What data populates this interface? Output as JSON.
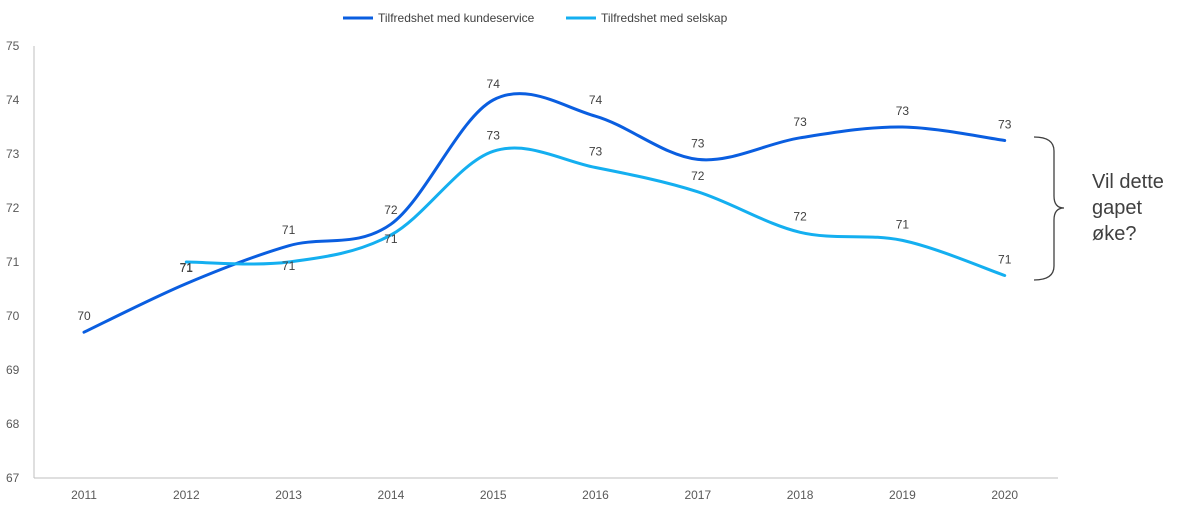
{
  "chart_data": {
    "type": "line",
    "title": "",
    "xlabel": "",
    "ylabel": "",
    "categories": [
      "2011",
      "2012",
      "2013",
      "2014",
      "2015",
      "2016",
      "2017",
      "2018",
      "2019",
      "2020"
    ],
    "ylim": [
      67,
      75
    ],
    "yticks": [
      "67",
      "68",
      "69",
      "70",
      "71",
      "72",
      "73",
      "74",
      "75"
    ],
    "grid": false,
    "legend_position": "top-center",
    "series": [
      {
        "name": "Tilfredshet med kundeservice",
        "color": "#0a5ee0",
        "values": [
          69.7,
          70.6,
          71.3,
          71.7,
          74.0,
          73.7,
          72.9,
          73.3,
          73.5,
          73.25
        ],
        "labels": [
          "70",
          "71",
          "71",
          "72",
          "74",
          "74",
          "73",
          "73",
          "73",
          "73"
        ]
      },
      {
        "name": "Tilfredshet med selskap",
        "color": "#14aff0",
        "values": [
          null,
          71.0,
          71.0,
          71.5,
          73.05,
          72.75,
          72.3,
          71.55,
          71.4,
          70.75
        ],
        "labels": [
          null,
          "71",
          "71",
          "71",
          "73",
          "73",
          "72",
          "72",
          "71",
          "71"
        ]
      }
    ],
    "annotation": {
      "lines": [
        "Vil dette",
        "gapet",
        "øke?"
      ]
    }
  }
}
